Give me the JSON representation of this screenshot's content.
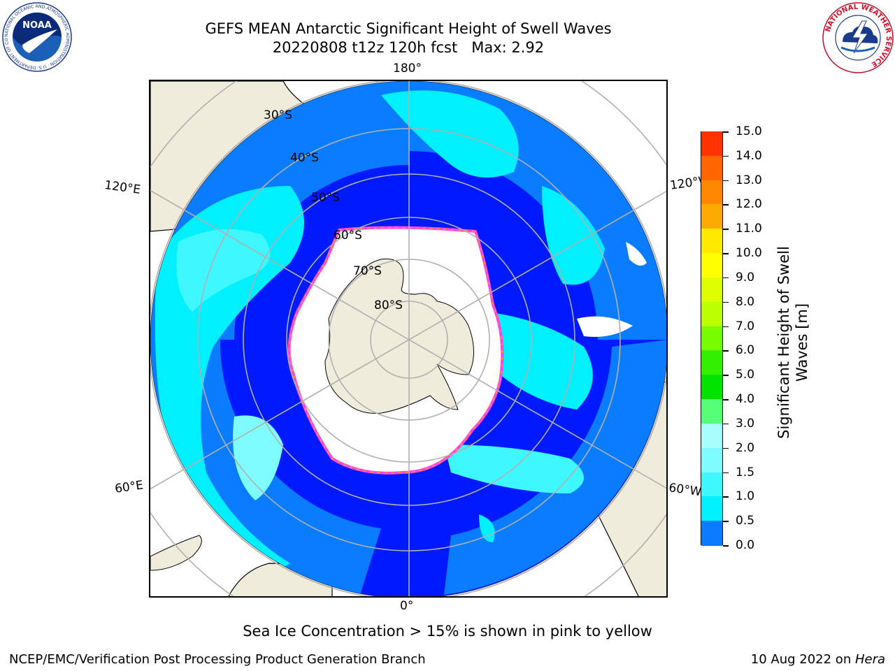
{
  "title": {
    "line1": "GEFS MEAN Antarctic Significant Height of Swell Waves",
    "line2": "20220808 t12z 120h fcst   Max: 2.92"
  },
  "map": {
    "projection": "south-polar-stereographic",
    "longitude_labels": {
      "top": "180°",
      "bottom": "0°",
      "upper_left": "120°E",
      "lower_left": "60°E",
      "upper_right": "120°W",
      "lower_right": "60°W"
    },
    "latitude_labels": [
      "30°S",
      "40°S",
      "50°S",
      "60°S",
      "70°S",
      "80°S"
    ],
    "colors": {
      "land": "#efecdc",
      "ocean_0_05": "#0019ff",
      "ocean_05_10": "#0a7cff",
      "ocean_10_15": "#00f0ff",
      "ocean_15_20": "#3ff8ff",
      "ocean_20_25": "#7ffcff",
      "ice_edge_pink": "#ff44dd",
      "ice_edge_orange": "#ffb000",
      "grid": "#b0b0b0"
    }
  },
  "colorbar": {
    "label": "Significant Height of Swell\nWaves [m]",
    "ticks": [
      "15.0",
      "14.0",
      "13.0",
      "12.0",
      "11.0",
      "10.0",
      "9.0",
      "8.0",
      "7.0",
      "6.0",
      "5.0",
      "4.0",
      "3.0",
      "2.0",
      "1.5",
      "1.0",
      "0.5",
      "0.0"
    ],
    "colors": [
      "#0019ff",
      "#0a7cff",
      "#00f0ff",
      "#3ff8ff",
      "#7ffcff",
      "#a8fffe",
      "#55ff77",
      "#00e400",
      "#33f000",
      "#77ff00",
      "#bbff00",
      "#ddff00",
      "#ffff00",
      "#ffea00",
      "#ffcc00",
      "#ffaa00",
      "#ff8800",
      "#ff6600",
      "#ff3300",
      "#ff0000"
    ]
  },
  "caption": "Sea Ice Concentration > 15% is shown in pink to yellow",
  "footer": {
    "left": "NCEP/EMC/Verification Post Processing Product Generation Branch",
    "right_date": "10 Aug 2022 on ",
    "right_machine": "Hera"
  },
  "logos": {
    "noaa_text": "NOAA",
    "noaa_ring": "NATIONAL OCEANIC AND ATMOSPHERIC ADMINISTRATION · U.S. DEPARTMENT OF COMMERCE",
    "nws_ring": "NATIONAL WEATHER SERVICE"
  }
}
